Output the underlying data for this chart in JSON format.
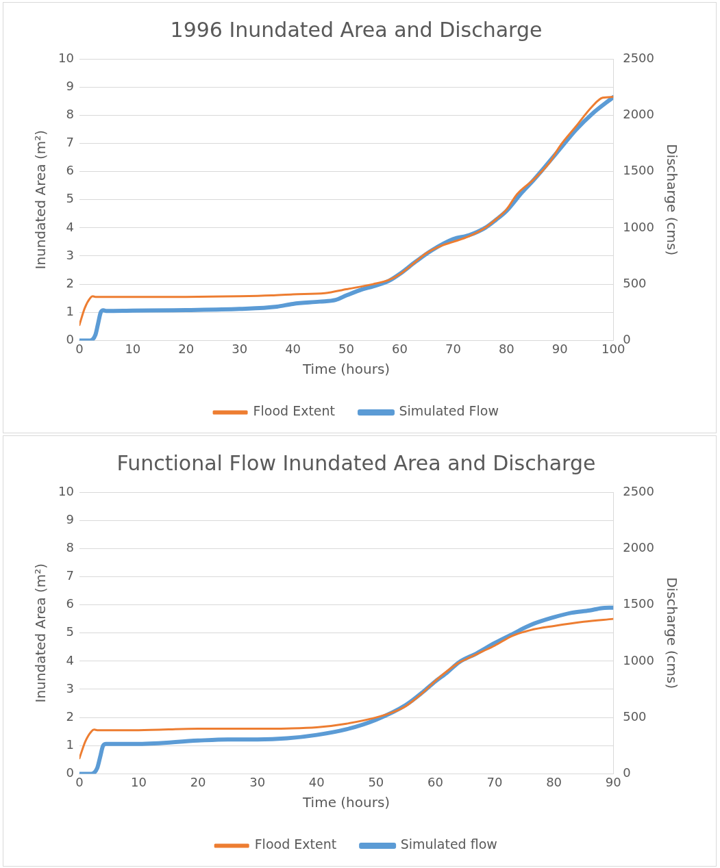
{
  "chart_data": [
    {
      "type": "line",
      "title": "1996 Inundated Area and Discharge",
      "xlabel": "Time (hours)",
      "ylabel": "Inundated Area (m²)",
      "y2label": "Discharge (cms)",
      "xlim": [
        0,
        100
      ],
      "xticks": [
        0,
        10,
        20,
        30,
        40,
        50,
        60,
        70,
        80,
        90,
        100
      ],
      "ylim": [
        0,
        10
      ],
      "yticks": [
        0,
        1,
        2,
        3,
        4,
        5,
        6,
        7,
        8,
        9,
        10
      ],
      "y2lim": [
        0,
        2500
      ],
      "y2ticks": [
        0,
        500,
        1000,
        1500,
        2000,
        2500
      ],
      "grid": "y",
      "legend": "bottom",
      "marker": "none",
      "line_style": "solid",
      "series": [
        {
          "name": "Flood Extent",
          "color": "#ed7d31",
          "x": [
            0,
            1,
            2,
            2.5,
            3,
            10,
            20,
            30,
            36,
            40,
            46,
            50,
            55,
            58,
            60,
            63,
            65,
            68,
            70,
            73,
            76,
            78,
            80,
            82,
            85,
            88,
            90,
            93,
            96,
            98,
            100
          ],
          "values": [
            0.55,
            1.15,
            1.5,
            1.57,
            1.55,
            1.55,
            1.55,
            1.57,
            1.6,
            1.64,
            1.68,
            1.82,
            2.0,
            2.15,
            2.35,
            2.8,
            3.1,
            3.38,
            3.5,
            3.7,
            4.0,
            4.3,
            4.65,
            5.2,
            5.7,
            6.3,
            6.9,
            7.6,
            8.3,
            8.62,
            8.65
          ]
        },
        {
          "name": "Simulated Flow",
          "color": "#5b9bd5",
          "axis": "y2",
          "x": [
            0,
            2,
            3,
            3.5,
            4,
            4.5,
            5,
            10,
            20,
            30,
            37,
            40,
            45,
            48,
            50,
            53,
            55,
            58,
            60,
            63,
            66,
            70,
            73,
            76,
            78,
            80,
            83,
            85,
            87,
            90,
            93,
            96,
            100
          ],
          "values": [
            0,
            0,
            50,
            150,
            250,
            268,
            262,
            265,
            270,
            280,
            300,
            325,
            345,
            360,
            400,
            455,
            480,
            530,
            590,
            700,
            800,
            900,
            935,
            1000,
            1070,
            1150,
            1320,
            1420,
            1530,
            1700,
            1870,
            2010,
            2160
          ]
        }
      ]
    },
    {
      "type": "line",
      "title": "Functional Flow Inundated Area and Discharge",
      "xlabel": "Time (hours)",
      "ylabel": "Inundated Area (m²)",
      "y2label": "Discharge (cms)",
      "xlim": [
        0,
        90
      ],
      "xticks": [
        0,
        10,
        20,
        30,
        40,
        50,
        60,
        70,
        80,
        90
      ],
      "ylim": [
        0,
        10
      ],
      "yticks": [
        0,
        1,
        2,
        3,
        4,
        5,
        6,
        7,
        8,
        9,
        10
      ],
      "y2lim": [
        0,
        2500
      ],
      "y2ticks": [
        0,
        500,
        1000,
        1500,
        2000,
        2500
      ],
      "grid": "y",
      "legend": "bottom",
      "marker": "none",
      "line_style": "solid",
      "series": [
        {
          "name": "Flood Extent",
          "color": "#ed7d31",
          "x": [
            0,
            1,
            2,
            2.5,
            3,
            10,
            20,
            30,
            35,
            40,
            45,
            50,
            53,
            55,
            58,
            60,
            62,
            64,
            66,
            68,
            70,
            73,
            76,
            80,
            85,
            90
          ],
          "values": [
            0.55,
            1.15,
            1.5,
            1.57,
            1.55,
            1.55,
            1.6,
            1.6,
            1.61,
            1.65,
            1.78,
            2.0,
            2.2,
            2.4,
            2.9,
            3.3,
            3.65,
            3.95,
            4.15,
            4.35,
            4.55,
            4.9,
            5.1,
            5.25,
            5.4,
            5.5
          ]
        },
        {
          "name": "Simulated flow",
          "color": "#5b9bd5",
          "axis": "y2",
          "x": [
            0,
            2,
            3,
            3.5,
            4,
            4.5,
            10,
            20,
            25,
            30,
            35,
            40,
            45,
            50,
            55,
            58,
            60,
            62,
            64,
            67,
            70,
            73,
            76,
            80,
            83,
            86,
            88,
            90
          ],
          "values": [
            0,
            0,
            50,
            150,
            250,
            265,
            265,
            295,
            305,
            305,
            315,
            345,
            395,
            480,
            610,
            730,
            820,
            900,
            990,
            1070,
            1160,
            1240,
            1320,
            1390,
            1430,
            1450,
            1470,
            1475
          ]
        }
      ]
    }
  ]
}
